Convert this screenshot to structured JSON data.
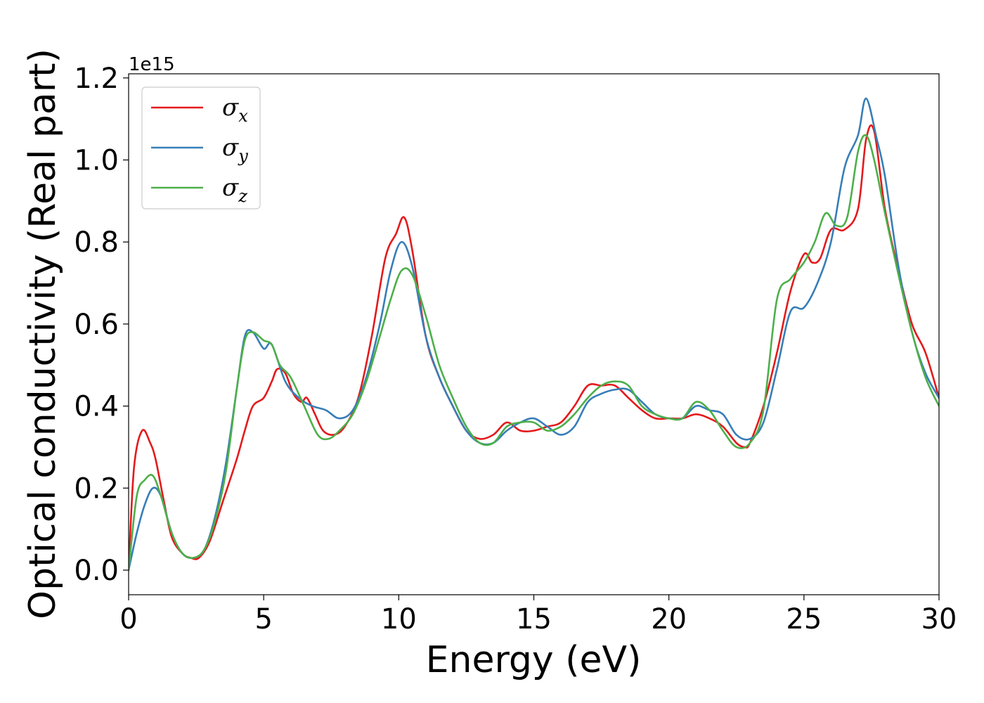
{
  "chart_data": {
    "type": "line",
    "xlabel": "Energy (eV)",
    "ylabel": "Optical conductivity (Real part)",
    "offset_text": "1e15",
    "xlim": [
      0,
      30
    ],
    "ylim": [
      -0.06,
      1.21
    ],
    "y_scale_factor": "1e15",
    "xticks": [
      "0",
      "5",
      "10",
      "15",
      "20",
      "25",
      "30"
    ],
    "yticks": [
      "0.0",
      "0.2",
      "0.4",
      "0.6",
      "0.8",
      "1.0",
      "1.2"
    ],
    "legend_position": "top-left",
    "grid": false,
    "series": [
      {
        "name": "σ",
        "subscript": "x",
        "color": "#e41a1c",
        "x": [
          0,
          0.2,
          0.5,
          0.8,
          1.0,
          1.3,
          1.6,
          2.0,
          2.3,
          2.6,
          3.0,
          3.5,
          4.0,
          4.3,
          4.6,
          5.0,
          5.3,
          5.5,
          5.8,
          6.1,
          6.4,
          6.6,
          6.9,
          7.2,
          7.6,
          8.0,
          8.5,
          9.0,
          9.5,
          9.9,
          10.2,
          10.5,
          11.0,
          11.5,
          12.0,
          12.5,
          13.0,
          13.5,
          14.0,
          14.5,
          15.0,
          15.5,
          16.0,
          16.5,
          17.0,
          17.5,
          18.0,
          18.5,
          19.0,
          19.5,
          20.0,
          20.5,
          21.0,
          21.5,
          22.0,
          22.5,
          22.8,
          23.0,
          23.5,
          24.0,
          24.5,
          25.0,
          25.3,
          25.6,
          26.0,
          26.5,
          27.0,
          27.3,
          27.6,
          28.0,
          28.5,
          29.0,
          29.5,
          30.0
        ],
        "values": [
          0,
          0.25,
          0.34,
          0.31,
          0.27,
          0.17,
          0.08,
          0.04,
          0.03,
          0.03,
          0.07,
          0.17,
          0.27,
          0.34,
          0.4,
          0.42,
          0.46,
          0.49,
          0.48,
          0.43,
          0.41,
          0.42,
          0.38,
          0.34,
          0.33,
          0.35,
          0.42,
          0.57,
          0.76,
          0.82,
          0.86,
          0.78,
          0.57,
          0.47,
          0.4,
          0.34,
          0.32,
          0.33,
          0.36,
          0.34,
          0.34,
          0.35,
          0.36,
          0.4,
          0.45,
          0.45,
          0.45,
          0.42,
          0.39,
          0.37,
          0.37,
          0.37,
          0.38,
          0.37,
          0.35,
          0.31,
          0.3,
          0.31,
          0.4,
          0.53,
          0.68,
          0.77,
          0.75,
          0.76,
          0.83,
          0.83,
          0.88,
          1.05,
          1.07,
          0.88,
          0.73,
          0.6,
          0.53,
          0.42
        ]
      },
      {
        "name": "σ",
        "subscript": "y",
        "color": "#377eb8",
        "x": [
          0,
          0.3,
          0.6,
          0.9,
          1.2,
          1.6,
          2.0,
          2.4,
          2.8,
          3.2,
          3.6,
          4.0,
          4.3,
          4.6,
          5.0,
          5.3,
          5.8,
          6.3,
          6.8,
          7.3,
          7.8,
          8.3,
          8.8,
          9.3,
          9.7,
          10.1,
          10.5,
          11.0,
          11.5,
          12.0,
          12.5,
          13.0,
          13.5,
          14.0,
          14.5,
          15.0,
          15.5,
          16.0,
          16.5,
          17.0,
          17.5,
          18.0,
          18.5,
          19.0,
          19.5,
          20.0,
          20.5,
          21.0,
          21.5,
          22.0,
          22.5,
          23.0,
          23.5,
          24.0,
          24.5,
          25.0,
          25.5,
          26.0,
          26.5,
          27.0,
          27.3,
          27.7,
          28.0,
          28.5,
          29.0,
          29.5,
          30.0
        ],
        "values": [
          0,
          0.09,
          0.16,
          0.2,
          0.18,
          0.09,
          0.04,
          0.03,
          0.05,
          0.13,
          0.26,
          0.44,
          0.57,
          0.58,
          0.54,
          0.55,
          0.46,
          0.42,
          0.4,
          0.39,
          0.37,
          0.39,
          0.47,
          0.6,
          0.73,
          0.8,
          0.74,
          0.57,
          0.47,
          0.4,
          0.34,
          0.31,
          0.31,
          0.34,
          0.36,
          0.37,
          0.35,
          0.33,
          0.35,
          0.41,
          0.43,
          0.44,
          0.44,
          0.41,
          0.38,
          0.37,
          0.37,
          0.4,
          0.39,
          0.38,
          0.33,
          0.32,
          0.36,
          0.49,
          0.63,
          0.64,
          0.7,
          0.8,
          0.98,
          1.06,
          1.15,
          1.05,
          0.96,
          0.74,
          0.58,
          0.48,
          0.42
        ]
      },
      {
        "name": "σ",
        "subscript": "z",
        "color": "#4daf4a",
        "x": [
          0,
          0.3,
          0.6,
          0.9,
          1.2,
          1.6,
          2.0,
          2.4,
          2.8,
          3.2,
          3.6,
          4.0,
          4.3,
          4.6,
          5.0,
          5.3,
          5.6,
          6.0,
          6.5,
          7.0,
          7.4,
          7.8,
          8.3,
          8.8,
          9.3,
          9.7,
          10.1,
          10.5,
          11.0,
          11.5,
          12.0,
          12.5,
          13.0,
          13.5,
          14.0,
          14.5,
          15.0,
          15.5,
          16.0,
          16.5,
          17.0,
          17.5,
          18.0,
          18.5,
          19.0,
          19.5,
          20.0,
          20.5,
          21.0,
          21.5,
          22.0,
          22.5,
          23.0,
          23.5,
          24.0,
          24.5,
          25.0,
          25.4,
          25.8,
          26.2,
          26.6,
          27.0,
          27.3,
          27.6,
          28.0,
          28.5,
          29.0,
          29.5,
          30.0
        ],
        "values": [
          0,
          0.18,
          0.22,
          0.23,
          0.18,
          0.09,
          0.04,
          0.03,
          0.05,
          0.12,
          0.24,
          0.44,
          0.56,
          0.58,
          0.56,
          0.55,
          0.5,
          0.47,
          0.4,
          0.33,
          0.32,
          0.34,
          0.38,
          0.46,
          0.57,
          0.66,
          0.73,
          0.72,
          0.62,
          0.5,
          0.42,
          0.35,
          0.31,
          0.31,
          0.35,
          0.36,
          0.36,
          0.34,
          0.35,
          0.38,
          0.42,
          0.45,
          0.46,
          0.45,
          0.4,
          0.38,
          0.37,
          0.37,
          0.41,
          0.39,
          0.34,
          0.3,
          0.31,
          0.39,
          0.66,
          0.71,
          0.75,
          0.8,
          0.87,
          0.84,
          0.86,
          1.02,
          1.06,
          1.0,
          0.87,
          0.72,
          0.58,
          0.47,
          0.4
        ]
      }
    ]
  }
}
